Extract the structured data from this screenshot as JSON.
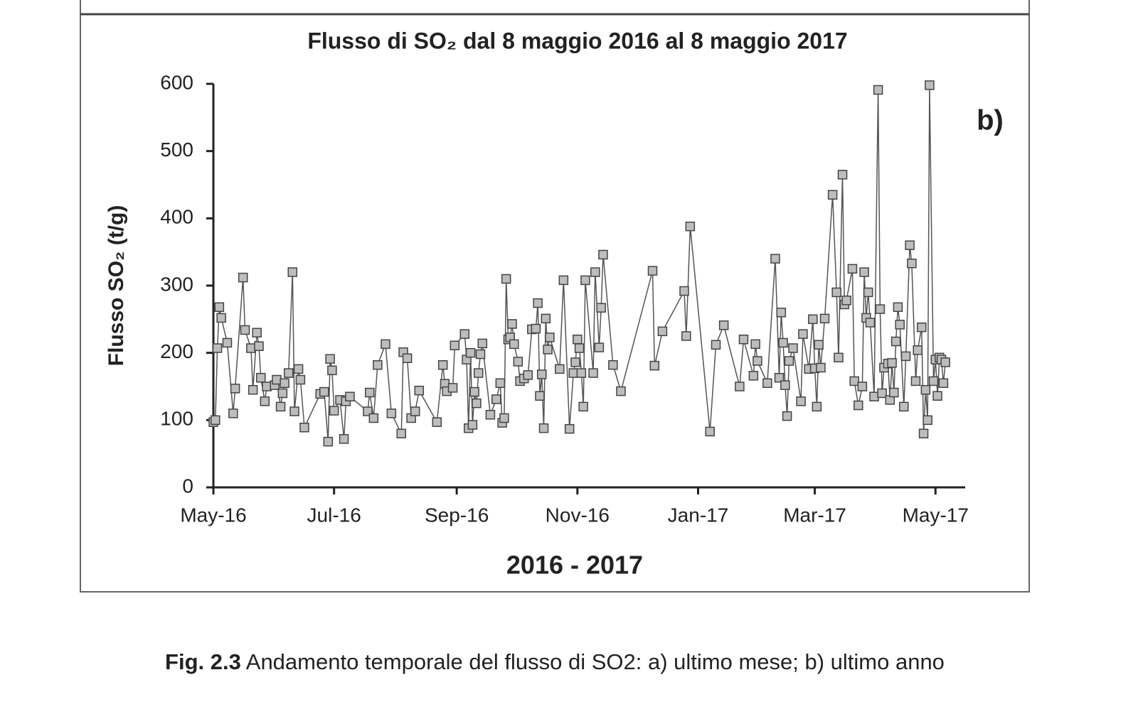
{
  "chart_data": {
    "type": "line",
    "title": "Flusso di SO₂ dal 8 maggio 2016 al 8 maggio 2017",
    "y_label": "Flusso SO₂ (t/g)",
    "x_label": "2016 - 2017",
    "panel_label": "b)",
    "color": "#bdbdbd",
    "line_color": "#555555",
    "x": [
      0,
      1,
      2,
      3,
      4,
      7,
      10,
      11,
      15,
      16,
      19,
      20,
      22,
      23,
      24,
      26,
      27,
      31,
      32,
      34,
      35,
      36,
      38,
      40,
      41,
      43,
      44,
      46,
      54,
      56,
      58,
      59,
      60,
      61,
      64,
      66,
      67,
      69,
      78,
      79,
      81,
      83,
      87,
      90,
      95,
      96,
      98,
      100,
      102,
      104,
      113,
      116,
      117,
      118,
      121,
      122,
      127,
      128,
      129,
      130,
      131,
      132,
      133,
      134,
      135,
      136,
      140,
      143,
      145,
      146,
      147,
      148,
      149,
      150,
      151,
      152,
      154,
      155,
      157,
      159,
      161,
      163,
      164,
      165,
      166,
      167,
      168,
      169,
      170,
      175,
      177,
      180,
      182,
      183,
      184,
      185,
      186,
      187,
      188,
      192,
      193,
      195,
      196,
      197,
      202,
      206,
      222,
      223,
      227,
      238,
      239,
      241,
      251,
      254,
      258,
      266,
      268,
      273,
      274,
      275,
      280,
      284,
      286,
      287,
      288,
      289,
      290,
      291,
      293,
      297,
      298,
      301,
      303,
      304,
      305,
      306,
      307,
      309,
      313,
      315,
      316,
      318,
      319,
      320,
      323,
      324,
      326,
      328,
      329,
      330,
      331,
      332,
      334,
      336,
      337,
      338,
      339,
      341,
      342,
      343,
      344,
      345,
      346,
      347,
      349,
      350,
      352,
      353,
      355,
      356,
      358,
      359,
      360,
      361,
      362,
      364,
      365,
      366,
      367,
      368,
      369,
      370
    ],
    "values": [
      97,
      100,
      207,
      268,
      252,
      215,
      110,
      147,
      312,
      234,
      207,
      145,
      230,
      210,
      163,
      128,
      150,
      152,
      160,
      120,
      140,
      155,
      170,
      320,
      113,
      176,
      160,
      89,
      139,
      142,
      68,
      191,
      174,
      114,
      130,
      72,
      128,
      135,
      113,
      141,
      103,
      182,
      213,
      110,
      80,
      201,
      192,
      103,
      113,
      144,
      97,
      182,
      154,
      143,
      148,
      211,
      228,
      190,
      88,
      200,
      93,
      142,
      125,
      170,
      198,
      214,
      108,
      131,
      155,
      96,
      103,
      310,
      220,
      223,
      243,
      213,
      187,
      158,
      162,
      167,
      235,
      236,
      274,
      136,
      168,
      88,
      251,
      205,
      223,
      176,
      308,
      87,
      170,
      186,
      220,
      207,
      170,
      120,
      308,
      170,
      320,
      208,
      267,
      346,
      182,
      143,
      322,
      181,
      232,
      292,
      225,
      388,
      83,
      212,
      241,
      150,
      220,
      166,
      213,
      188,
      155,
      340,
      163,
      260,
      215,
      152,
      106,
      188,
      207,
      128,
      228,
      176,
      250,
      177,
      120,
      212,
      178,
      251,
      435,
      290,
      193,
      465,
      272,
      278,
      325,
      158,
      122,
      150,
      320,
      252,
      290,
      245,
      135,
      591,
      265,
      140,
      178,
      184,
      130,
      185,
      141,
      217,
      268,
      242,
      120,
      195,
      360,
      333,
      158,
      204,
      238,
      80,
      145,
      100,
      598,
      158,
      190,
      136,
      193,
      190,
      155,
      186
    ],
    "xlim": [
      0,
      380
    ],
    "xticks": [
      {
        "value": 0,
        "label": "May-16"
      },
      {
        "value": 61,
        "label": "Jul-16"
      },
      {
        "value": 123,
        "label": "Sep-16"
      },
      {
        "value": 184,
        "label": "Nov-16"
      },
      {
        "value": 245,
        "label": "Jan-17"
      },
      {
        "value": 304,
        "label": "Mar-17"
      },
      {
        "value": 365,
        "label": "May-17"
      }
    ],
    "ylim": [
      0,
      600
    ],
    "yticks": [
      0,
      100,
      200,
      300,
      400,
      500,
      600
    ]
  },
  "caption": {
    "label": "Fig. 2.3",
    "text": "Andamento temporale del flusso di SO2: a) ultimo mese; b) ultimo anno"
  }
}
